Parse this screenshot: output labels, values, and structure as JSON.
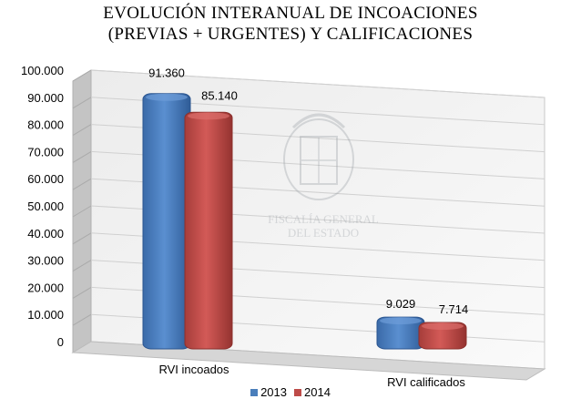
{
  "chart_data": {
    "type": "bar",
    "title_line1": "EVOLUCIÓN INTERANUAL DE INCOACIONES",
    "title_line2": "(PREVIAS + URGENTES) Y CALIFICACIONES",
    "categories": [
      "RVI incoados",
      "RVI calificados"
    ],
    "series": [
      {
        "name": "2013",
        "values": [
          91360,
          9029
        ],
        "labels": [
          "91.360",
          "9.029"
        ],
        "color": "#4a7ebb"
      },
      {
        "name": "2014",
        "values": [
          85140,
          7714
        ],
        "labels": [
          "85.140",
          "7.714"
        ],
        "color": "#be4b48"
      }
    ],
    "y_ticks": [
      "0",
      "10.000",
      "20.000",
      "30.000",
      "40.000",
      "50.000",
      "60.000",
      "70.000",
      "80.000",
      "90.000",
      "100.000"
    ],
    "ylim": [
      0,
      100000
    ],
    "grid": true,
    "legend_position": "bottom",
    "watermark_text": [
      "FISCALÍA GENERAL",
      "DEL ESTADO"
    ]
  }
}
